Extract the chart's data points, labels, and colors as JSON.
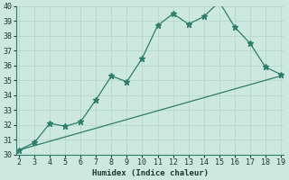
{
  "xlabel": "Humidex (Indice chaleur)",
  "x_values": [
    2,
    3,
    4,
    5,
    6,
    7,
    8,
    9,
    10,
    11,
    12,
    13,
    14,
    15,
    16,
    17,
    18,
    19
  ],
  "y_values": [
    30.3,
    30.8,
    32.1,
    31.9,
    32.2,
    33.7,
    35.3,
    34.9,
    36.5,
    38.7,
    39.5,
    38.8,
    39.3,
    40.3,
    38.6,
    37.5,
    35.9,
    35.4
  ],
  "trend_x": [
    2,
    19
  ],
  "trend_y": [
    30.3,
    35.3
  ],
  "line_color": "#2e7d6b",
  "bg_color": "#cce8df",
  "grid_major_color": "#b8d8cc",
  "grid_minor_color": "#d5ebe4",
  "ylim": [
    30,
    40
  ],
  "xlim": [
    2,
    19
  ],
  "yticks": [
    30,
    31,
    32,
    33,
    34,
    35,
    36,
    37,
    38,
    39,
    40
  ],
  "xticks": [
    2,
    3,
    4,
    5,
    6,
    7,
    8,
    9,
    10,
    11,
    12,
    13,
    14,
    15,
    16,
    17,
    18,
    19
  ]
}
